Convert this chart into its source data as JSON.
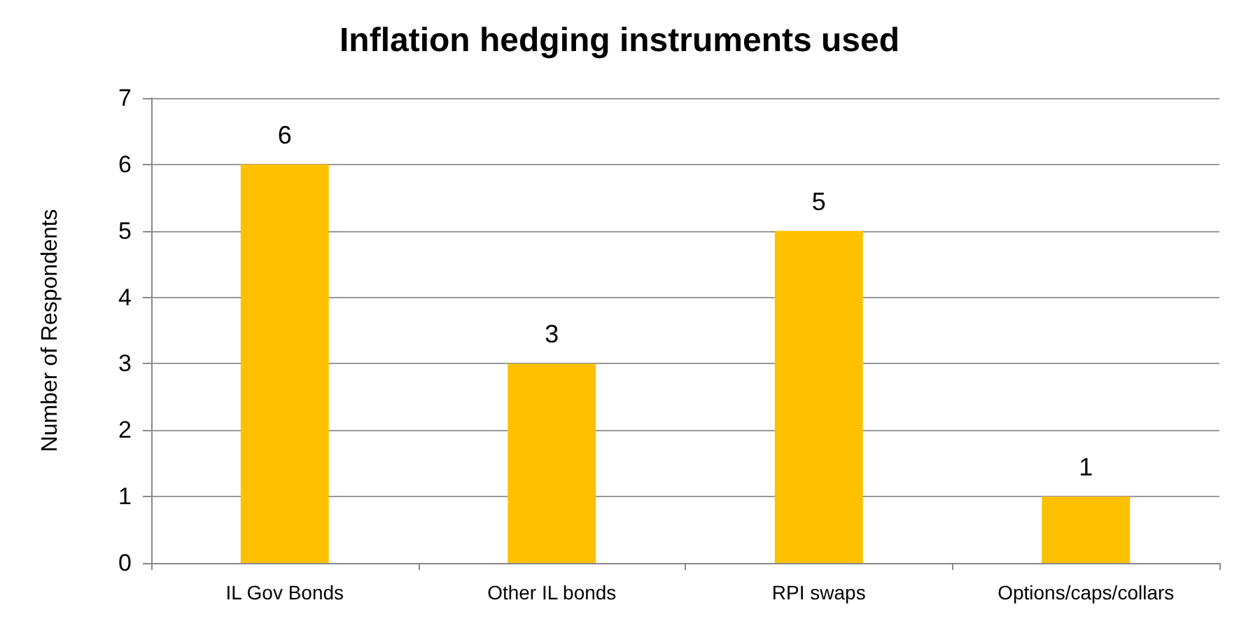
{
  "chart_data": {
    "type": "bar",
    "title": "Inflation hedging instruments used",
    "ylabel": "Number of Respondents",
    "categories": [
      "IL Gov Bonds",
      "Other IL bonds",
      "RPI swaps",
      "Options/caps/collars"
    ],
    "values": [
      6,
      3,
      5,
      1
    ],
    "color": "#ffc000",
    "ylim": [
      0,
      7
    ],
    "yticks": [
      0,
      1,
      2,
      3,
      4,
      5,
      6,
      7
    ],
    "grid": "y",
    "data_labels": true
  }
}
